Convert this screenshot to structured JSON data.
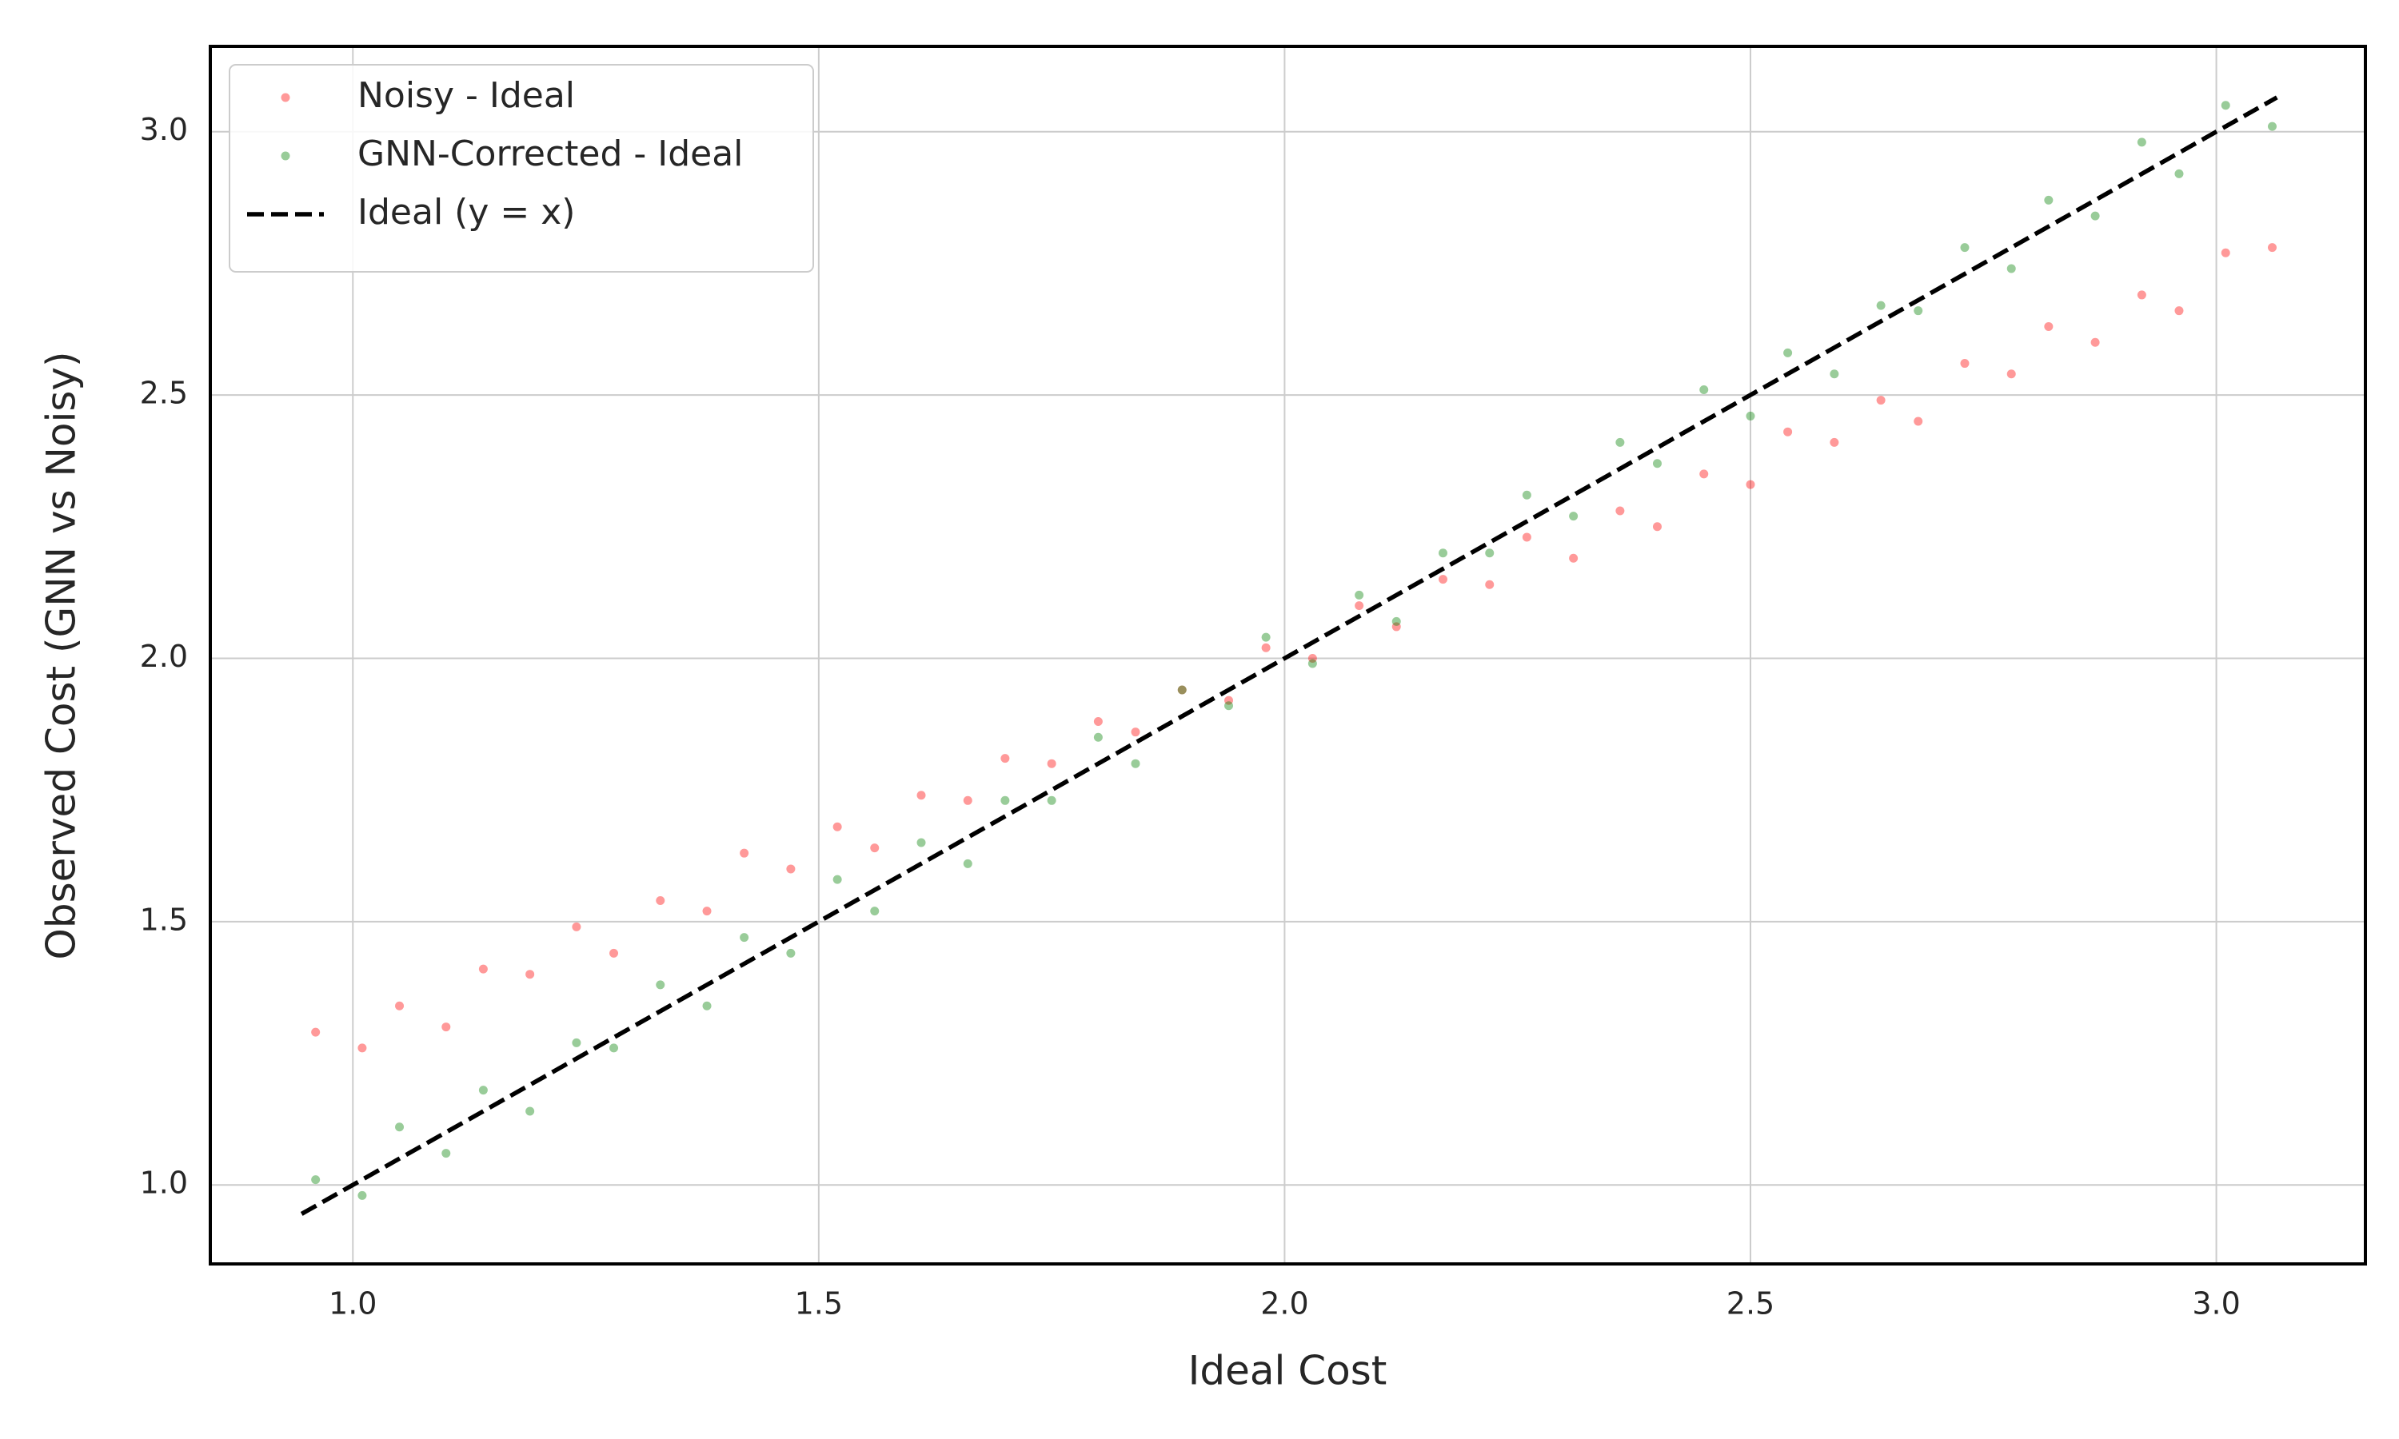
{
  "chart_data": {
    "type": "scatter",
    "xlabel": "Ideal Cost",
    "ylabel": "Observed Cost (GNN vs Noisy)",
    "xlim": [
      0.847,
      3.16
    ],
    "ylim": [
      0.85,
      3.162
    ],
    "xticks": [
      {
        "value": 1,
        "label": "1.0"
      },
      1.5,
      {
        "value": 2,
        "label": "2.0"
      },
      2.5,
      {
        "value": 3,
        "label": "3.0"
      }
    ],
    "yticks": [
      {
        "value": 1,
        "label": "1.0"
      },
      1.5,
      {
        "value": 2,
        "label": "2.0"
      },
      2.5,
      {
        "value": 3,
        "label": "3.0"
      }
    ],
    "grid": true,
    "legend": "upper left",
    "series": [
      {
        "name": "Noisy - Ideal",
        "color": "#ff0000",
        "mode": "markers",
        "x": [
          0.96,
          1.01,
          1.05,
          1.1,
          1.14,
          1.19,
          1.24,
          1.28,
          1.33,
          1.38,
          1.42,
          1.47,
          1.52,
          1.56,
          1.61,
          1.66,
          1.7,
          1.75,
          1.8,
          1.84,
          1.89,
          1.94,
          1.98,
          2.03,
          2.08,
          2.12,
          2.17,
          2.22,
          2.26,
          2.31,
          2.36,
          2.4,
          2.45,
          2.5,
          2.54,
          2.59,
          2.64,
          2.68,
          2.73,
          2.78,
          2.82,
          2.87,
          2.92,
          2.96,
          3.01,
          3.06
        ],
        "values": [
          1.29,
          1.26,
          1.34,
          1.3,
          1.41,
          1.4,
          1.49,
          1.44,
          1.54,
          1.52,
          1.63,
          1.6,
          1.68,
          1.64,
          1.74,
          1.73,
          1.81,
          1.8,
          1.88,
          1.86,
          1.94,
          1.92,
          2.02,
          2.0,
          2.1,
          2.06,
          2.15,
          2.14,
          2.23,
          2.19,
          2.28,
          2.25,
          2.35,
          2.33,
          2.43,
          2.41,
          2.49,
          2.45,
          2.56,
          2.54,
          2.63,
          2.6,
          2.69,
          2.66,
          2.77,
          2.78
        ]
      },
      {
        "name": "GNN-Corrected - Ideal",
        "color": "#008000",
        "mode": "markers",
        "x": [
          0.96,
          1.01,
          1.05,
          1.1,
          1.14,
          1.19,
          1.24,
          1.28,
          1.33,
          1.38,
          1.42,
          1.47,
          1.52,
          1.56,
          1.61,
          1.66,
          1.7,
          1.75,
          1.8,
          1.84,
          1.89,
          1.94,
          1.98,
          2.03,
          2.08,
          2.12,
          2.17,
          2.22,
          2.26,
          2.31,
          2.36,
          2.4,
          2.45,
          2.5,
          2.54,
          2.59,
          2.64,
          2.68,
          2.73,
          2.78,
          2.82,
          2.87,
          2.92,
          2.96,
          3.01,
          3.06
        ],
        "values": [
          1.01,
          0.98,
          1.11,
          1.06,
          1.18,
          1.14,
          1.27,
          1.26,
          1.38,
          1.34,
          1.47,
          1.44,
          1.58,
          1.52,
          1.65,
          1.61,
          1.73,
          1.73,
          1.85,
          1.8,
          1.94,
          1.91,
          2.04,
          1.99,
          2.12,
          2.07,
          2.2,
          2.2,
          2.31,
          2.27,
          2.41,
          2.37,
          2.51,
          2.46,
          2.58,
          2.54,
          2.67,
          2.66,
          2.78,
          2.74,
          2.87,
          2.84,
          2.98,
          2.92,
          3.05,
          3.01
        ]
      },
      {
        "name": "Ideal (y = x)",
        "color": "#000000",
        "mode": "dashed-line",
        "x": [
          0.945,
          3.065
        ],
        "values": [
          0.945,
          3.065
        ]
      }
    ]
  }
}
